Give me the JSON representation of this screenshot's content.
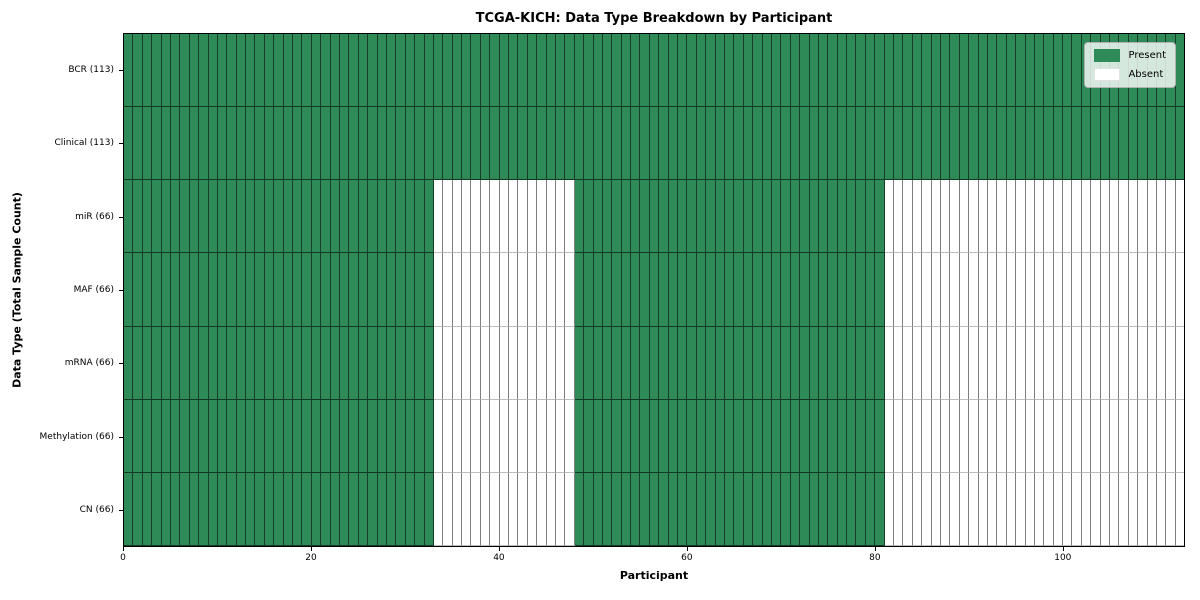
{
  "title": "TCGA-KICH: Data Type Breakdown by Participant",
  "chart_data": {
    "type": "heatmap",
    "title": "TCGA-KICH: Data Type Breakdown by Participant",
    "xlabel": "Participant",
    "ylabel": "Data Type (Total Sample Count)",
    "x_ticks": [
      0,
      20,
      40,
      60,
      80,
      100
    ],
    "xlim": [
      0,
      113
    ],
    "n_participants": 113,
    "grid": false,
    "legend": {
      "position": "upper right",
      "entries": [
        {
          "label": "Present",
          "color": "#2e8b57"
        },
        {
          "label": "Absent",
          "color": "#ffffff"
        }
      ]
    },
    "colors": {
      "present": "#2e8b57",
      "absent": "#ffffff"
    },
    "rows": [
      {
        "label": "BCR (113)",
        "data_type": "BCR",
        "sample_count": 113,
        "present_ranges": [
          [
            0,
            113
          ]
        ]
      },
      {
        "label": "Clinical (113)",
        "data_type": "Clinical",
        "sample_count": 113,
        "present_ranges": [
          [
            0,
            113
          ]
        ]
      },
      {
        "label": "miR (66)",
        "data_type": "miR",
        "sample_count": 66,
        "present_ranges": [
          [
            0,
            33
          ],
          [
            48,
            81
          ]
        ]
      },
      {
        "label": "MAF (66)",
        "data_type": "MAF",
        "sample_count": 66,
        "present_ranges": [
          [
            0,
            33
          ],
          [
            48,
            81
          ]
        ]
      },
      {
        "label": "mRNA (66)",
        "data_type": "mRNA",
        "sample_count": 66,
        "present_ranges": [
          [
            0,
            33
          ],
          [
            48,
            81
          ]
        ]
      },
      {
        "label": "Methylation (66)",
        "data_type": "Methylation",
        "sample_count": 66,
        "present_ranges": [
          [
            0,
            33
          ],
          [
            48,
            81
          ]
        ]
      },
      {
        "label": "CN (66)",
        "data_type": "CN",
        "sample_count": 66,
        "present_ranges": [
          [
            0,
            33
          ],
          [
            48,
            81
          ]
        ]
      }
    ]
  }
}
